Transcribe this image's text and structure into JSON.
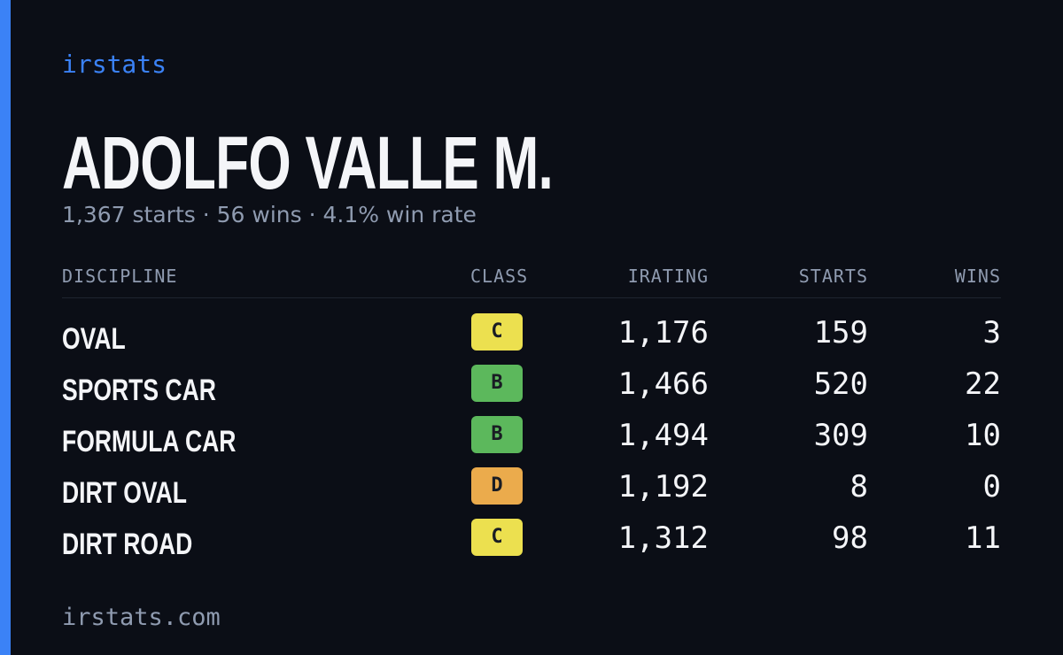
{
  "header": {
    "brand": "irstats",
    "name": "ADOLFO VALLE M.",
    "subtitle": "1,367 starts · 56 wins · 4.1% win rate"
  },
  "table": {
    "columns": [
      "DISCIPLINE",
      "CLASS",
      "IRATING",
      "STARTS",
      "WINS"
    ],
    "rows": [
      {
        "discipline": "OVAL",
        "class": "C",
        "class_color": "#ece04f",
        "irating": "1,176",
        "starts": "159",
        "wins": "3"
      },
      {
        "discipline": "SPORTS CAR",
        "class": "B",
        "class_color": "#5cb85c",
        "irating": "1,466",
        "starts": "520",
        "wins": "22"
      },
      {
        "discipline": "FORMULA CAR",
        "class": "B",
        "class_color": "#5cb85c",
        "irating": "1,494",
        "starts": "309",
        "wins": "10"
      },
      {
        "discipline": "DIRT OVAL",
        "class": "D",
        "class_color": "#ebab4c",
        "irating": "1,192",
        "starts": "8",
        "wins": "0"
      },
      {
        "discipline": "DIRT ROAD",
        "class": "C",
        "class_color": "#ece04f",
        "irating": "1,312",
        "starts": "98",
        "wins": "11"
      }
    ]
  },
  "footer": {
    "url": "irstats.com"
  }
}
